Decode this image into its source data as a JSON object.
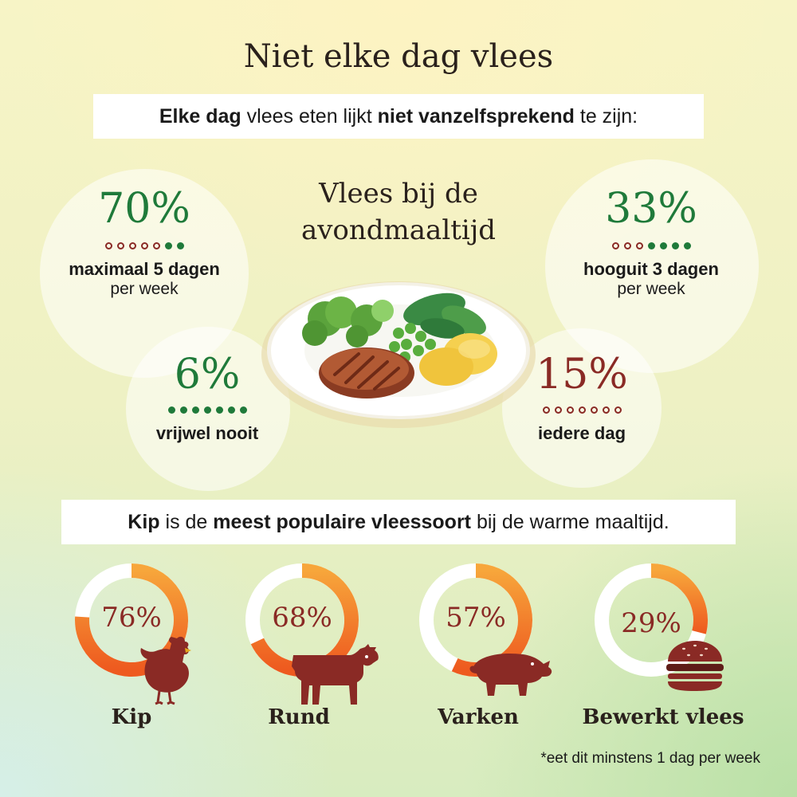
{
  "title": "Niet elke dag vlees",
  "intro": {
    "bold1": "Elke dag",
    "text1": " vlees eten lijkt ",
    "bold2": "niet vanzelfsprekend",
    "text2": " te zijn:"
  },
  "center_title_line1": "Vlees bij de",
  "center_title_line2": "avondmaaltijd",
  "stats": [
    {
      "pct": "70%",
      "bold": "maximaal 5 dagen",
      "sub": "per week",
      "filled_days": 2,
      "total_days": 7
    },
    {
      "pct": "33%",
      "bold": "hooguit 3 dagen",
      "sub": "per week",
      "filled_days": 4,
      "total_days": 7
    },
    {
      "pct": "6%",
      "bold": "vrijwel nooit",
      "sub": "",
      "filled_days": 7,
      "total_days": 7
    },
    {
      "pct": "15%",
      "bold": "iedere dag",
      "sub": "",
      "filled_days": 0,
      "total_days": 7
    }
  ],
  "popular": {
    "bold1": "Kip",
    "text1": " is de ",
    "bold2": "meest populaire vleessoort",
    "text2": " bij de warme maaltijd."
  },
  "meats": [
    {
      "pct": "76%",
      "value": 76,
      "label": "Kip",
      "icon": "chicken-icon"
    },
    {
      "pct": "68%",
      "value": 68,
      "label": "Rund",
      "icon": "cow-icon"
    },
    {
      "pct": "57%",
      "value": 57,
      "label": "Varken",
      "icon": "pig-icon"
    },
    {
      "pct": "29%",
      "value": 29,
      "label": "Bewerkt vlees",
      "icon": "burger-icon"
    }
  ],
  "footnote": "*eet dit minstens 1 dag per week",
  "colors": {
    "green": "#1f7a3a",
    "red": "#8a2a25",
    "orange": "#f07f1c"
  }
}
